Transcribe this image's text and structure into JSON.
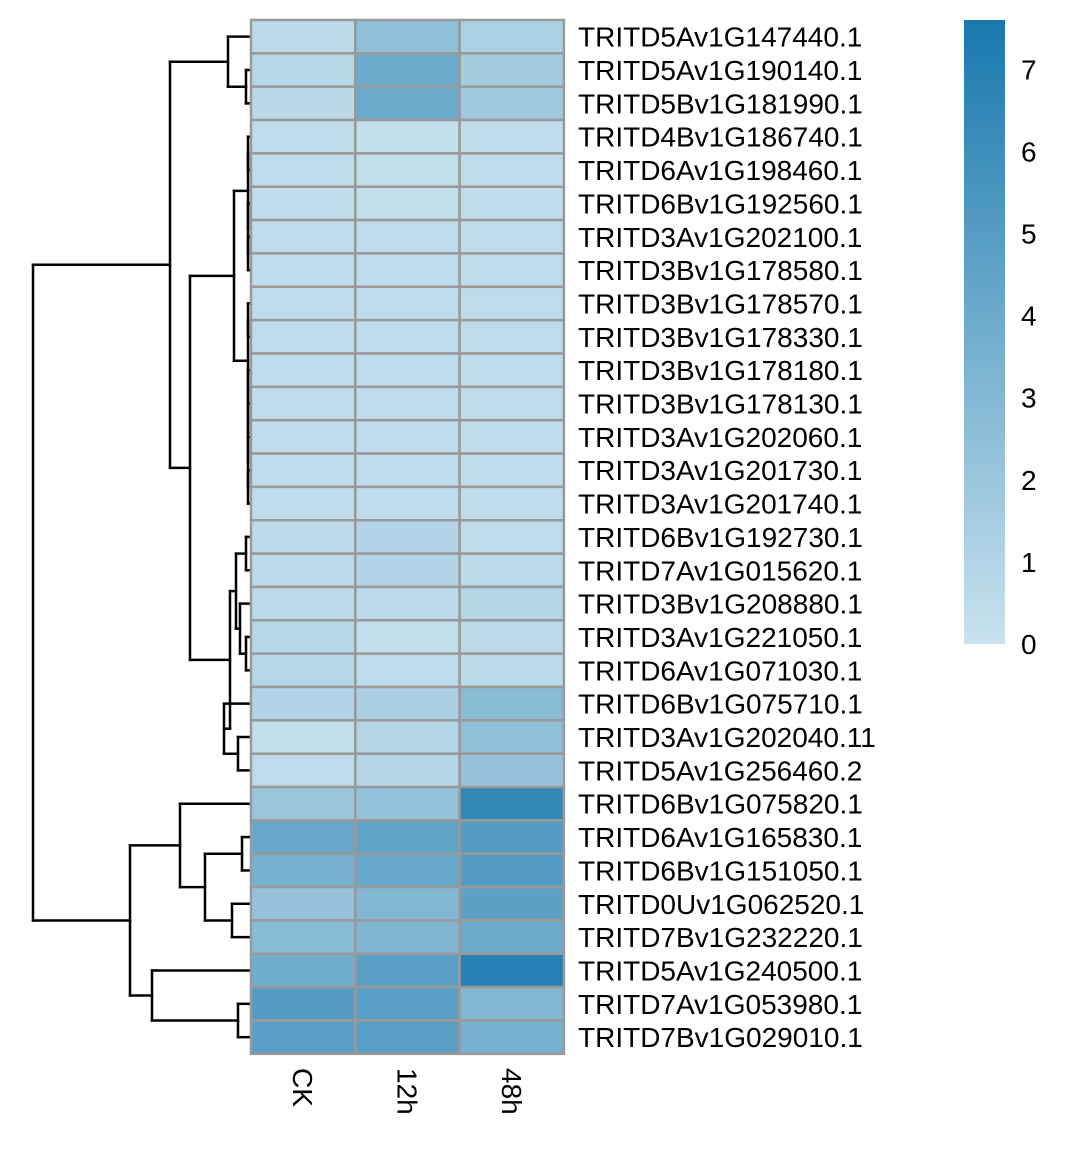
{
  "chart_data": {
    "type": "heatmap",
    "title": "",
    "columns": [
      "CK",
      "12h",
      "48h"
    ],
    "rows": [
      "TRITD5Av1G147440.1",
      "TRITD5Av1G190140.1",
      "TRITD5Bv1G181990.1",
      "TRITD4Bv1G186740.1",
      "TRITD6Av1G198460.1",
      "TRITD6Bv1G192560.1",
      "TRITD3Av1G202100.1",
      "TRITD3Bv1G178580.1",
      "TRITD3Bv1G178570.1",
      "TRITD3Bv1G178330.1",
      "TRITD3Bv1G178180.1",
      "TRITD3Bv1G178130.1",
      "TRITD3Av1G202060.1",
      "TRITD3Av1G201730.1",
      "TRITD3Av1G201740.1",
      "TRITD6Bv1G192730.1",
      "TRITD7Av1G015620.1",
      "TRITD3Bv1G208880.1",
      "TRITD3Av1G221050.1",
      "TRITD6Av1G071030.1",
      "TRITD6Bv1G075710.1",
      "TRITD3Av1G202040.11",
      "TRITD5Av1G256460.2",
      "TRITD6Bv1G075820.1",
      "TRITD6Av1G165830.1",
      "TRITD6Bv1G151050.1",
      "TRITD0Uv1G062520.1",
      "TRITD7Bv1G232220.1",
      "TRITD5Av1G240500.1",
      "TRITD7Av1G053980.1",
      "TRITD7Bv1G029010.1"
    ],
    "values": [
      [
        0.6,
        2.5,
        1.2
      ],
      [
        0.8,
        4.0,
        1.6
      ],
      [
        0.7,
        4.0,
        1.8
      ],
      [
        0.4,
        0.2,
        0.4
      ],
      [
        0.4,
        0.3,
        0.4
      ],
      [
        0.4,
        0.3,
        0.4
      ],
      [
        0.4,
        0.4,
        0.5
      ],
      [
        0.4,
        0.4,
        0.5
      ],
      [
        0.4,
        0.4,
        0.5
      ],
      [
        0.4,
        0.4,
        0.5
      ],
      [
        0.4,
        0.4,
        0.5
      ],
      [
        0.4,
        0.4,
        0.5
      ],
      [
        0.4,
        0.4,
        0.4
      ],
      [
        0.4,
        0.4,
        0.4
      ],
      [
        0.4,
        0.4,
        0.4
      ],
      [
        0.6,
        1.0,
        0.5
      ],
      [
        0.6,
        1.0,
        0.6
      ],
      [
        0.6,
        0.6,
        0.9
      ],
      [
        0.8,
        0.3,
        0.6
      ],
      [
        0.8,
        0.5,
        0.6
      ],
      [
        1.0,
        1.3,
        2.8
      ],
      [
        0.2,
        0.9,
        2.5
      ],
      [
        0.5,
        0.9,
        2.2
      ],
      [
        2.0,
        2.3,
        6.5
      ],
      [
        4.2,
        4.5,
        5.0
      ],
      [
        3.5,
        4.2,
        5.0
      ],
      [
        2.2,
        3.0,
        4.7
      ],
      [
        2.8,
        3.2,
        4.0
      ],
      [
        3.8,
        4.8,
        7.0
      ],
      [
        5.0,
        4.8,
        3.0
      ],
      [
        4.8,
        4.8,
        3.5
      ]
    ],
    "colorbar": {
      "min": 0,
      "max": 7.6,
      "ticks": [
        "0",
        "1",
        "2",
        "3",
        "4",
        "5",
        "6",
        "7"
      ],
      "low_color": "#c9e2ee",
      "high_color": "#1878ae"
    },
    "cell_border_color": "#999999",
    "dendrogram": "rows"
  }
}
